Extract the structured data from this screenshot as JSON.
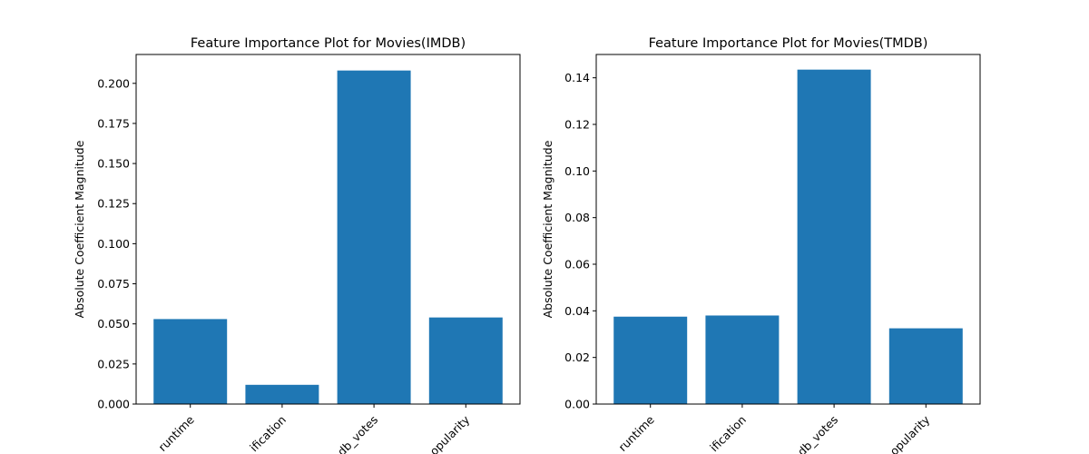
{
  "chart_data": [
    {
      "type": "bar",
      "title": "Feature Importance Plot for Movies(IMDB)",
      "xlabel": "",
      "ylabel": "Absolute Coefficient Magnitude",
      "categories": [
        "runtime",
        "classification",
        "imdb_votes",
        "popularity"
      ],
      "category_tick_labels": [
        "runtime",
        "ification",
        "db_votes",
        "opularity"
      ],
      "values": [
        0.053,
        0.012,
        0.208,
        0.054
      ],
      "ylim": [
        0,
        0.218
      ],
      "yticks": [
        0.0,
        0.025,
        0.05,
        0.075,
        0.1,
        0.125,
        0.15,
        0.175,
        0.2
      ],
      "ytick_labels": [
        "0.000",
        "0.025",
        "0.050",
        "0.075",
        "0.100",
        "0.125",
        "0.150",
        "0.175",
        "0.200"
      ],
      "grid": false,
      "legend": "none",
      "bar_color": "#1f77b4"
    },
    {
      "type": "bar",
      "title": "Feature Importance Plot for Movies(TMDB)",
      "xlabel": "",
      "ylabel": "Absolute Coefficient Magnitude",
      "categories": [
        "runtime",
        "classification",
        "imdb_votes",
        "popularity"
      ],
      "category_tick_labels": [
        "runtime",
        "ification",
        "db_votes",
        "opularity"
      ],
      "values": [
        0.0375,
        0.038,
        0.1435,
        0.0325
      ],
      "ylim": [
        0,
        0.15
      ],
      "yticks": [
        0.0,
        0.02,
        0.04,
        0.06,
        0.08,
        0.1,
        0.12,
        0.14
      ],
      "ytick_labels": [
        "0.00",
        "0.02",
        "0.04",
        "0.06",
        "0.08",
        "0.10",
        "0.12",
        "0.14"
      ],
      "grid": false,
      "legend": "none",
      "bar_color": "#1f77b4"
    }
  ]
}
